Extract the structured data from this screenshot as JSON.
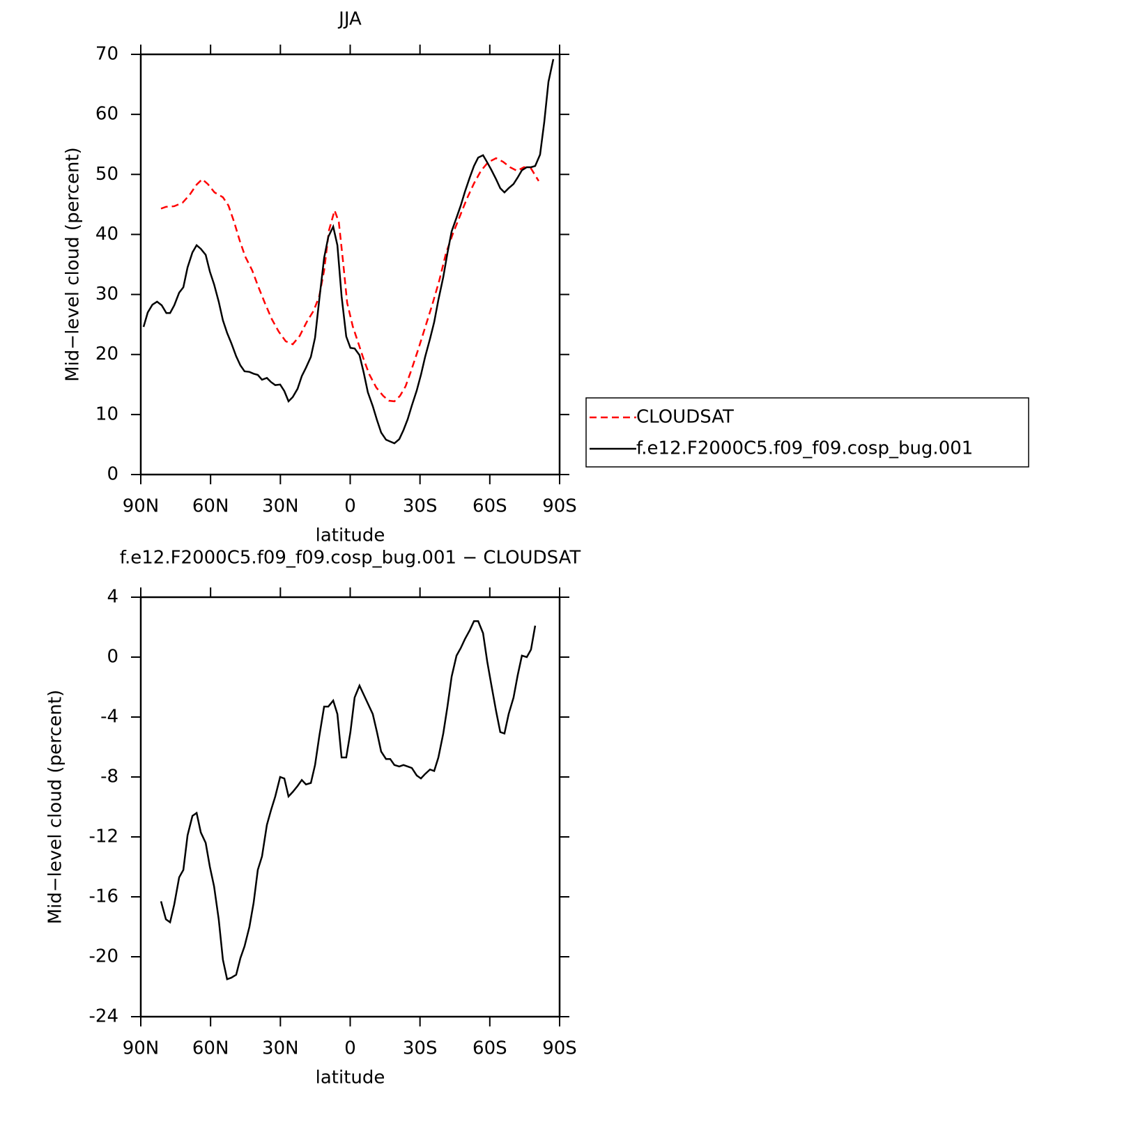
{
  "chart_data": [
    {
      "type": "line",
      "title": "JJA",
      "x_label": "latitude",
      "y_label": "Mid−level cloud (percent)",
      "xlim": [
        90,
        -90
      ],
      "xticks": [
        {
          "value": 90,
          "label": "90N"
        },
        {
          "value": 60,
          "label": "60N"
        },
        {
          "value": 30,
          "label": "30N"
        },
        0,
        {
          "value": -30,
          "label": "30S"
        },
        {
          "value": -60,
          "label": "60S"
        },
        {
          "value": -90,
          "label": "90S"
        }
      ],
      "ylim": [
        0,
        70
      ],
      "yticks": [
        0,
        10,
        20,
        30,
        40,
        50,
        60,
        70
      ],
      "legend": "right",
      "series": [
        {
          "name": "CLOUDSAT",
          "color": "#ff0000",
          "line_style": "dashed",
          "x": [
            81.3,
            79.2,
            75.6,
            72,
            69,
            66,
            63.6,
            61.2,
            58.3,
            54.7,
            52.3,
            49.9,
            47.5,
            45.1,
            42.1,
            39.7,
            36.7,
            33.7,
            30.7,
            27.7,
            24.7,
            21.7,
            18.7,
            15.7,
            13.3,
            11.2,
            9.1,
            6.7,
            4.9,
            3.1,
            1.3,
            -1.1,
            -3.5,
            -5.8,
            -8.2,
            -11.2,
            -14.2,
            -16.6,
            -19,
            -21.4,
            -23.8,
            -26.2,
            -29.2,
            -32.2,
            -35.2,
            -38.2,
            -41.2,
            -44.2,
            -47.2,
            -50.2,
            -53.2,
            -56.2,
            -59.2,
            -62.7,
            -65.7,
            -68.7,
            -71.7,
            -74.7,
            -77.7,
            -81
          ],
          "values": [
            44.3,
            44.6,
            44.7,
            45.3,
            46.6,
            48.3,
            49.2,
            48.4,
            47,
            46.2,
            44.8,
            42.1,
            39,
            36.3,
            34,
            31.5,
            28.6,
            25.9,
            23.8,
            22.2,
            21.7,
            23.1,
            25.4,
            27.3,
            29.7,
            34,
            40.7,
            44,
            42.1,
            35.6,
            28.6,
            24.7,
            21.9,
            19.2,
            16.7,
            14.5,
            13.1,
            12.3,
            12.2,
            13.1,
            14.7,
            17.3,
            20.8,
            24.5,
            28.2,
            32.2,
            36.9,
            40.2,
            43.1,
            46,
            48.5,
            50.6,
            52,
            52.7,
            52.1,
            51.2,
            50.6,
            51.2,
            51,
            48.9
          ]
        },
        {
          "name": "f.e12.F2000C5.f09_f09.cosp_bug.001",
          "color": "#000000",
          "line_style": "solid",
          "x": [
            88.8,
            87,
            85,
            83,
            81,
            79,
            77.4,
            75.6,
            73.5,
            71.7,
            69.9,
            67.8,
            66,
            64.2,
            62.1,
            60.3,
            58.5,
            56.5,
            54.7,
            52.9,
            51.1,
            49,
            47.2,
            45.4,
            43.3,
            41.5,
            39.7,
            37.9,
            35.8,
            34,
            32.2,
            30.1,
            28.3,
            26.5,
            24.7,
            22.6,
            20.8,
            19,
            16.9,
            15.1,
            13.3,
            11.2,
            9.4,
            7.3,
            5.5,
            3.7,
            1.7,
            -0.1,
            -1.9,
            -4,
            -5.8,
            -7.6,
            -9.7,
            -11.5,
            -13.3,
            -15.4,
            -17.2,
            -19,
            -21.1,
            -22.9,
            -24.7,
            -26.5,
            -28.6,
            -30.4,
            -32.2,
            -34.3,
            -36.1,
            -37.9,
            -40,
            -41.8,
            -43.6,
            -45.7,
            -47.5,
            -49.3,
            -51.4,
            -53.2,
            -55,
            -57.1,
            -58.9,
            -60.6,
            -62.7,
            -64.5,
            -66.3,
            -68.1,
            -70.2,
            -72,
            -73.8,
            -75.9,
            -77.7,
            -79.5,
            -81.6,
            -83.4,
            -85.2,
            -87.3
          ],
          "values": [
            24.6,
            27,
            28.3,
            28.8,
            28.2,
            26.9,
            26.9,
            28.2,
            30.3,
            31.2,
            34.5,
            37,
            38.2,
            37.6,
            36.6,
            33.8,
            31.7,
            28.8,
            25.7,
            23.6,
            21.9,
            19.7,
            18.2,
            17.2,
            17.1,
            16.8,
            16.6,
            15.8,
            16.1,
            15.4,
            14.9,
            15,
            13.9,
            12.2,
            12.9,
            14.3,
            16.4,
            17.8,
            19.6,
            22.8,
            29.1,
            36.1,
            39.6,
            41.3,
            38.2,
            29.7,
            23,
            21.1,
            21,
            19.9,
            17,
            13.7,
            11.4,
            9.1,
            7,
            5.8,
            5.5,
            5.2,
            5.9,
            7.4,
            9.2,
            11.5,
            14,
            16.6,
            19.6,
            22.6,
            25.4,
            29.1,
            32.9,
            36.9,
            40.5,
            42.8,
            44.8,
            47.1,
            49.5,
            51.4,
            52.8,
            53.2,
            52,
            50.8,
            49.2,
            47.7,
            47,
            47.7,
            48.4,
            49.5,
            50.7,
            51.2,
            51.2,
            51.4,
            53.3,
            58.7,
            65.4,
            69.2
          ]
        }
      ]
    },
    {
      "type": "line",
      "title": "f.e12.F2000C5.f09_f09.cosp_bug.001 − CLOUDSAT",
      "x_label": "latitude",
      "y_label": "Mid−level cloud (percent)",
      "xlim": [
        90,
        -90
      ],
      "xticks": [
        {
          "value": 90,
          "label": "90N"
        },
        {
          "value": 60,
          "label": "60N"
        },
        {
          "value": 30,
          "label": "30N"
        },
        0,
        {
          "value": -30,
          "label": "30S"
        },
        {
          "value": -60,
          "label": "60S"
        },
        {
          "value": -90,
          "label": "90S"
        }
      ],
      "ylim": [
        -24,
        4
      ],
      "yticks": [
        -24,
        -20,
        -16,
        -12,
        -8,
        -4,
        0,
        4
      ],
      "series": [
        {
          "color": "#000000",
          "line_style": "solid",
          "x": [
            81.3,
            79.2,
            77.4,
            75.6,
            73.5,
            71.7,
            69.9,
            67.8,
            66,
            64.2,
            62.1,
            60.3,
            58.5,
            56.5,
            54.7,
            52.9,
            51.1,
            49,
            47.2,
            45.4,
            43.3,
            41.5,
            39.7,
            37.9,
            35.8,
            34,
            32.2,
            30.1,
            28.3,
            26.5,
            24.7,
            22.6,
            20.8,
            19,
            16.9,
            15.1,
            13.3,
            11.2,
            9.4,
            7.3,
            5.5,
            3.7,
            1.7,
            -0.1,
            -1.9,
            -4,
            -5.8,
            -7.6,
            -9.7,
            -11.5,
            -13.3,
            -15.4,
            -17.2,
            -19,
            -21.1,
            -22.9,
            -24.7,
            -26.5,
            -28.6,
            -30.4,
            -32.2,
            -34.3,
            -36.1,
            -37.9,
            -40,
            -41.8,
            -43.6,
            -45.7,
            -47.5,
            -49.3,
            -51.4,
            -53.2,
            -55,
            -57.1,
            -58.9,
            -60.6,
            -62.7,
            -64.5,
            -66.3,
            -68.1,
            -70.2,
            -72,
            -73.8,
            -75.9,
            -77.7,
            -79.5
          ],
          "values": [
            -16.3,
            -17.5,
            -17.7,
            -16.5,
            -14.7,
            -14.2,
            -11.9,
            -10.6,
            -10.4,
            -11.7,
            -12.4,
            -14,
            -15.3,
            -17.5,
            -20.2,
            -21.5,
            -21.4,
            -21.2,
            -20.1,
            -19.3,
            -18,
            -16.4,
            -14.2,
            -13.3,
            -11.2,
            -10.2,
            -9.3,
            -8,
            -8.1,
            -9.3,
            -9,
            -8.6,
            -8.2,
            -8.5,
            -8.4,
            -7.2,
            -5.3,
            -3.3,
            -3.3,
            -2.9,
            -3.8,
            -6.7,
            -6.7,
            -5,
            -2.7,
            -1.9,
            -2.5,
            -3.1,
            -3.8,
            -5,
            -6.3,
            -6.8,
            -6.8,
            -7.2,
            -7.3,
            -7.2,
            -7.3,
            -7.4,
            -7.9,
            -8.1,
            -7.8,
            -7.5,
            -7.6,
            -6.7,
            -5.1,
            -3.3,
            -1.3,
            0.1,
            0.6,
            1.2,
            1.8,
            2.4,
            2.4,
            1.6,
            -0.3,
            -1.8,
            -3.6,
            -5,
            -5.1,
            -3.8,
            -2.7,
            -1.2,
            0.1,
            0,
            0.5,
            2.1
          ]
        }
      ]
    }
  ]
}
